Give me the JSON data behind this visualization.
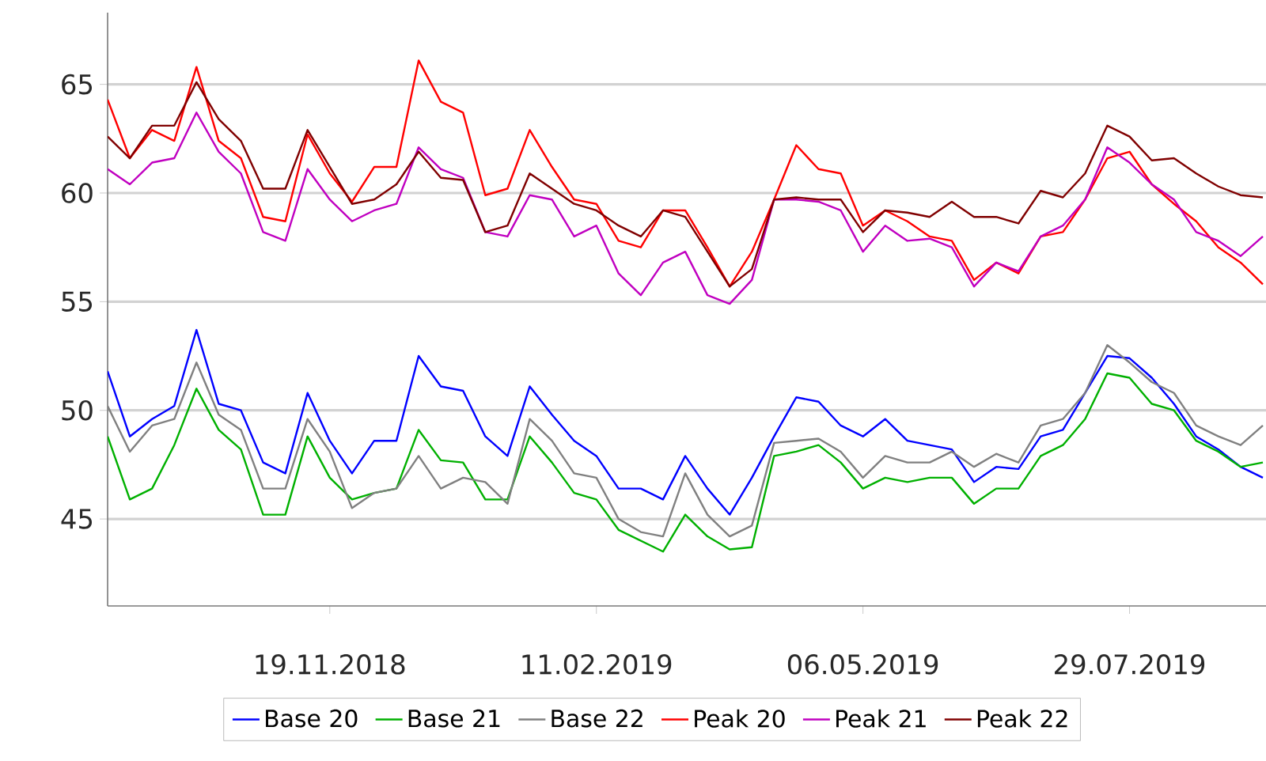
{
  "chart_data": {
    "type": "line",
    "x": [
      "2018-09-10",
      "2018-09-17",
      "2018-09-24",
      "2018-10-01",
      "2018-10-08",
      "2018-10-15",
      "2018-10-22",
      "2018-10-29",
      "2018-11-05",
      "2018-11-12",
      "2018-11-19",
      "2018-11-26",
      "2018-12-03",
      "2018-12-10",
      "2018-12-17",
      "2018-12-24",
      "2018-12-31",
      "2019-01-07",
      "2019-01-14",
      "2019-01-21",
      "2019-01-28",
      "2019-02-04",
      "2019-02-11",
      "2019-02-18",
      "2019-02-25",
      "2019-03-04",
      "2019-03-11",
      "2019-03-18",
      "2019-03-25",
      "2019-04-01",
      "2019-04-08",
      "2019-04-15",
      "2019-04-22",
      "2019-04-29",
      "2019-05-06",
      "2019-05-13",
      "2019-05-20",
      "2019-05-27",
      "2019-06-03",
      "2019-06-10",
      "2019-06-17",
      "2019-06-24",
      "2019-07-01",
      "2019-07-08",
      "2019-07-15",
      "2019-07-22",
      "2019-07-29",
      "2019-08-05",
      "2019-08-12",
      "2019-08-19",
      "2019-08-26",
      "2019-09-02",
      "2019-09-09"
    ],
    "series": [
      {
        "name": "Base 20",
        "color": "#0000ff",
        "values": [
          51.8,
          48.8,
          49.6,
          50.2,
          53.7,
          50.3,
          50,
          47.6,
          47.1,
          50.8,
          48.6,
          47.1,
          48.6,
          48.6,
          52.5,
          51.1,
          50.9,
          48.8,
          47.9,
          51.1,
          49.8,
          48.6,
          47.9,
          46.4,
          46.4,
          45.9,
          47.9,
          46.4,
          45.2,
          46.9,
          48.8,
          50.6,
          50.4,
          49.3,
          48.8,
          49.6,
          48.6,
          48.4,
          48.2,
          46.7,
          47.4,
          47.3,
          48.8,
          49.1,
          50.8,
          52.5,
          52.4,
          51.5,
          50.3,
          48.8,
          48.2,
          47.4,
          46.9
        ]
      },
      {
        "name": "Base 21",
        "color": "#00b000",
        "values": [
          48.8,
          45.9,
          46.4,
          48.4,
          51,
          49.1,
          48.2,
          45.2,
          45.2,
          48.8,
          46.9,
          45.9,
          46.2,
          46.4,
          49.1,
          47.7,
          47.6,
          45.9,
          45.9,
          48.8,
          47.6,
          46.2,
          45.9,
          44.5,
          44,
          43.5,
          45.2,
          44.2,
          43.6,
          43.7,
          47.9,
          48.1,
          48.4,
          47.6,
          46.4,
          46.9,
          46.7,
          46.9,
          46.9,
          45.7,
          46.4,
          46.4,
          47.9,
          48.4,
          49.6,
          51.7,
          51.5,
          50.3,
          50,
          48.6,
          48.1,
          47.4,
          47.6
        ]
      },
      {
        "name": "Base 22",
        "color": "#808080",
        "values": [
          50.2,
          48.1,
          49.3,
          49.6,
          52.2,
          49.8,
          49.1,
          46.4,
          46.4,
          49.6,
          48.1,
          45.5,
          46.2,
          46.4,
          47.9,
          46.4,
          46.9,
          46.7,
          45.7,
          49.6,
          48.6,
          47.1,
          46.9,
          45,
          44.4,
          44.2,
          47.1,
          45.2,
          44.2,
          44.7,
          48.5,
          48.6,
          48.7,
          48.1,
          46.9,
          47.9,
          47.6,
          47.6,
          48.1,
          47.4,
          48,
          47.6,
          49.3,
          49.6,
          50.8,
          53,
          52.2,
          51.3,
          50.8,
          49.3,
          48.8,
          48.4,
          49.3
        ]
      },
      {
        "name": "Peak 20",
        "color": "#ff0000",
        "values": [
          64.3,
          61.6,
          62.9,
          62.4,
          65.8,
          62.4,
          61.6,
          58.9,
          58.7,
          62.7,
          60.9,
          59.6,
          61.2,
          61.2,
          66.1,
          64.2,
          63.7,
          59.9,
          60.2,
          62.9,
          61.2,
          59.7,
          59.5,
          57.8,
          57.5,
          59.2,
          59.2,
          57.5,
          55.7,
          57.3,
          59.7,
          62.2,
          61.1,
          60.9,
          58.5,
          59.2,
          58.7,
          58,
          57.8,
          56,
          56.8,
          56.3,
          58,
          58.2,
          59.7,
          61.6,
          61.9,
          60.4,
          59.5,
          58.7,
          57.5,
          56.8,
          55.8
        ]
      },
      {
        "name": "Peak 21",
        "color": "#c000c0",
        "values": [
          61.1,
          60.4,
          61.4,
          61.6,
          63.7,
          61.9,
          60.9,
          58.2,
          57.8,
          61.1,
          59.7,
          58.7,
          59.2,
          59.5,
          62.1,
          61.1,
          60.7,
          58.2,
          58,
          59.9,
          59.7,
          58,
          58.5,
          56.3,
          55.3,
          56.8,
          57.3,
          55.3,
          54.9,
          56,
          59.7,
          59.7,
          59.6,
          59.2,
          57.3,
          58.5,
          57.8,
          57.9,
          57.5,
          55.7,
          56.8,
          56.4,
          58,
          58.5,
          59.7,
          62.1,
          61.4,
          60.4,
          59.7,
          58.2,
          57.8,
          57.1,
          58
        ]
      },
      {
        "name": "Peak 22",
        "color": "#800000",
        "values": [
          62.6,
          61.6,
          63.1,
          63.1,
          65.1,
          63.4,
          62.4,
          60.2,
          60.2,
          62.9,
          61.2,
          59.5,
          59.7,
          60.4,
          61.9,
          60.7,
          60.6,
          58.2,
          58.5,
          60.9,
          60.2,
          59.5,
          59.2,
          58.5,
          58,
          59.2,
          58.9,
          57.3,
          55.7,
          56.5,
          59.7,
          59.8,
          59.7,
          59.7,
          58.2,
          59.2,
          59.1,
          58.9,
          59.6,
          58.9,
          58.9,
          58.6,
          60.1,
          59.8,
          60.9,
          63.1,
          62.6,
          61.5,
          61.6,
          60.9,
          60.3,
          59.9,
          59.8
        ]
      }
    ],
    "xlim": [
      "2018-09-10",
      "2019-09-10"
    ],
    "xticks": [
      {
        "value": "2018-11-19",
        "label": "19.11.2018"
      },
      {
        "value": "2019-02-11",
        "label": "11.02.2019"
      },
      {
        "value": "2019-05-06",
        "label": "06.05.2019"
      },
      {
        "value": "2019-07-29",
        "label": "29.07.2019"
      }
    ],
    "ylim": [
      41,
      68.3
    ],
    "yticks": [
      45,
      50,
      55,
      60,
      65
    ],
    "grid": "y",
    "legend": "bottom"
  }
}
